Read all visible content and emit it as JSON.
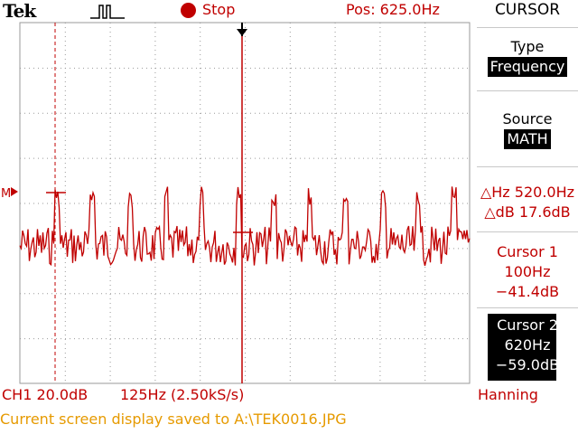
{
  "header": {
    "brand": "Tek",
    "trigger_icon": "pulse-icon",
    "run_state": "Stop",
    "run_indicator_color": "#c00000",
    "position": "Pos: 625.0Hz"
  },
  "side_menu": {
    "title": "CURSOR",
    "items": [
      {
        "label": "Type",
        "value": "Frequency"
      },
      {
        "label": "Source",
        "value": "MATH"
      }
    ],
    "delta_hz": "△Hz 520.0Hz",
    "delta_db": "△dB 17.6dB",
    "cursor1": {
      "label": "Cursor 1",
      "freq": "100Hz",
      "db": "−41.4dB"
    },
    "cursor2": {
      "label": "Cursor 2",
      "freq": "620Hz",
      "db": "−59.0dB"
    }
  },
  "footer": {
    "channel_scale": "CH1 20.0dB",
    "freq_scale": "125Hz (2.50kS/s)",
    "window": "Hanning",
    "status_message": "Current screen display saved to A:\\TEK0016.JPG"
  },
  "display": {
    "marker_label": "M",
    "trace_color": "#c00000",
    "grid_color": "#9a9a9a",
    "cursor1_freq_hz": 100,
    "cursor2_freq_hz": 620,
    "trigger_position_hz": 625
  }
}
